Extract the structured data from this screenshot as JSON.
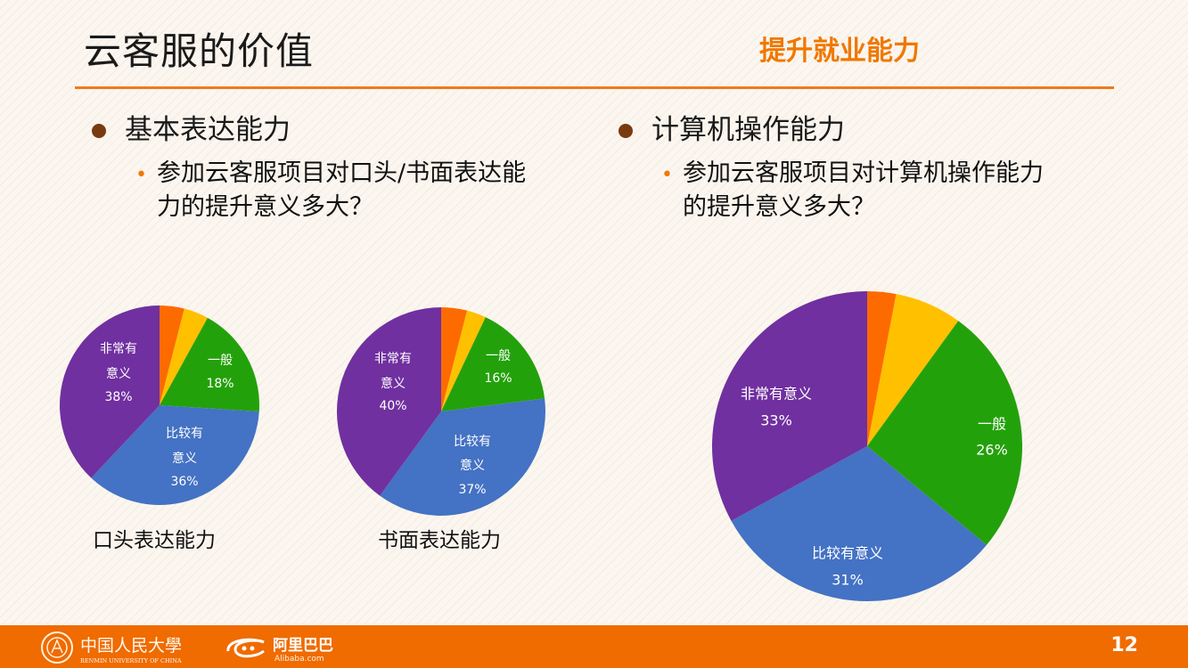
{
  "slide": {
    "title": "云客服的价值",
    "subtitle": "提升就业能力",
    "page_number": "12"
  },
  "left_section": {
    "heading": "基本表达能力",
    "question_line1": "参加云客服项目对口头/书面表达能",
    "question_line2": "力的提升意义多大？"
  },
  "right_section": {
    "heading": "计算机操作能力",
    "question_line1": "参加云客服项目对计算机操作能力",
    "question_line2": "的提升意义多大？"
  },
  "footer": {
    "university_logo": "中国人民大學",
    "university_logo_en": "RENMIN UNIVERSITY OF CHINA",
    "alibaba_logo": "阿里巴巴",
    "alibaba_logo_en": "Alibaba.com"
  },
  "colors": {
    "accent": "#f07800",
    "slice_orange": "#fd6a00",
    "slice_yellow": "#ffc000",
    "slice_green": "#23a10b",
    "slice_blue": "#4472c4",
    "slice_purple": "#7030a0"
  },
  "chart_data": [
    {
      "type": "pie",
      "title": "口头表达能力",
      "slices": [
        {
          "value": 4,
          "label": "",
          "color": "#fd6a00"
        },
        {
          "value": 4,
          "label": "",
          "color": "#ffc000"
        },
        {
          "value": 18,
          "label": "一般",
          "display": "18%",
          "color": "#23a10b"
        },
        {
          "value": 36,
          "label": "比较有意义",
          "display": "36%",
          "color": "#4472c4"
        },
        {
          "value": 38,
          "label": "非常有意义",
          "display": "38%",
          "color": "#7030a0"
        }
      ]
    },
    {
      "type": "pie",
      "title": "书面表达能力",
      "slices": [
        {
          "value": 4,
          "label": "",
          "color": "#fd6a00"
        },
        {
          "value": 3,
          "label": "",
          "color": "#ffc000"
        },
        {
          "value": 16,
          "label": "一般",
          "display": "16%",
          "color": "#23a10b"
        },
        {
          "value": 37,
          "label": "比较有意义",
          "display": "37%",
          "color": "#4472c4"
        },
        {
          "value": 40,
          "label": "非常有意义",
          "display": "40%",
          "color": "#7030a0"
        }
      ]
    },
    {
      "type": "pie",
      "title": "",
      "slices": [
        {
          "value": 3,
          "label": "",
          "color": "#fd6a00"
        },
        {
          "value": 7,
          "label": "",
          "color": "#ffc000"
        },
        {
          "value": 26,
          "label": "一般",
          "display": "26%",
          "color": "#23a10b"
        },
        {
          "value": 31,
          "label": "比较有意义",
          "display": "31%",
          "color": "#4472c4"
        },
        {
          "value": 33,
          "label": "非常有意义",
          "display": "33%",
          "color": "#7030a0"
        }
      ]
    }
  ]
}
